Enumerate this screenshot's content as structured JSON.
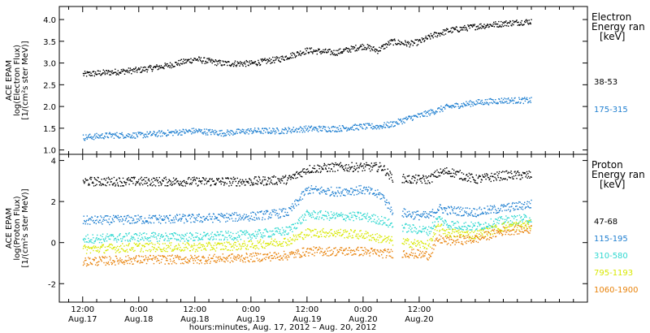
{
  "chart_data": [
    {
      "type": "scatter",
      "ylabel": "ACE EPAM\nlog(Electron Flux)\n[1/(cm²s ster MeV)]",
      "ylim": [
        0.9,
        4.3
      ],
      "yticks": [
        1.0,
        1.5,
        2.0,
        2.5,
        3.0,
        3.5,
        4.0
      ],
      "ytick_labels": [
        "1.0",
        "1.5",
        "2.0",
        "2.5",
        "3.0",
        "3.5",
        "4.0"
      ],
      "legend_title": "Electron\nEnergy ran\n[keV]",
      "legend_placement": "right",
      "series": [
        {
          "name": "38-53",
          "color": "#000000",
          "x": [
            0,
            6,
            12,
            18,
            24,
            30,
            36,
            42,
            48,
            54,
            60,
            63,
            66,
            70,
            72,
            75,
            78,
            84,
            90,
            96
          ],
          "y": [
            2.75,
            2.8,
            2.85,
            2.95,
            3.1,
            3.0,
            3.0,
            3.1,
            3.3,
            3.25,
            3.4,
            3.3,
            3.5,
            3.45,
            3.5,
            3.65,
            3.75,
            3.85,
            3.92,
            3.97
          ]
        },
        {
          "name": "175-315",
          "color": "#1f7fd0",
          "x": [
            0,
            6,
            12,
            18,
            24,
            30,
            36,
            42,
            48,
            54,
            60,
            63,
            66,
            70,
            72,
            75,
            78,
            84,
            90,
            96
          ],
          "y": [
            1.3,
            1.35,
            1.35,
            1.4,
            1.45,
            1.4,
            1.45,
            1.45,
            1.5,
            1.5,
            1.55,
            1.55,
            1.6,
            1.75,
            1.8,
            1.9,
            2.0,
            2.1,
            2.15,
            2.15
          ]
        }
      ]
    },
    {
      "type": "scatter",
      "ylabel": "ACE EPAM\nlog(Proton Flux)\n[1/(cm²s ster MeV)]",
      "ylim": [
        -2.9,
        4.3
      ],
      "yticks": [
        -2,
        0,
        2,
        4
      ],
      "ytick_labels": [
        "-2",
        "0",
        "2",
        "4"
      ],
      "legend_title": "Proton\nEnergy ran\n[keV]",
      "legend_placement": "right",
      "series": [
        {
          "name": "47-68",
          "color": "#000000",
          "x": [
            0,
            12,
            24,
            36,
            44,
            48,
            54,
            60,
            64,
            66,
            70,
            74,
            76,
            78,
            84,
            90,
            96
          ],
          "y": [
            3.0,
            3.0,
            3.0,
            3.0,
            3.1,
            3.6,
            3.7,
            3.7,
            3.7,
            3.2,
            3.1,
            3.1,
            3.4,
            3.5,
            3.1,
            3.3,
            3.3
          ]
        },
        {
          "name": "115-195",
          "color": "#1f7fd0",
          "x": [
            0,
            12,
            24,
            36,
            44,
            48,
            54,
            60,
            64,
            66,
            70,
            74,
            76,
            78,
            84,
            90,
            96
          ],
          "y": [
            1.1,
            1.15,
            1.2,
            1.3,
            1.5,
            2.6,
            2.5,
            2.6,
            2.3,
            1.6,
            1.4,
            1.3,
            1.7,
            1.6,
            1.5,
            1.7,
            1.9
          ]
        },
        {
          "name": "310-580",
          "color": "#2fd8d0",
          "x": [
            0,
            12,
            24,
            36,
            44,
            48,
            54,
            60,
            64,
            66,
            70,
            74,
            76,
            78,
            84,
            90,
            96
          ],
          "y": [
            0.2,
            0.3,
            0.3,
            0.4,
            0.6,
            1.4,
            1.3,
            1.3,
            1.1,
            0.9,
            0.7,
            0.6,
            1.2,
            0.9,
            0.8,
            1.1,
            1.2
          ]
        },
        {
          "name": "795-1193",
          "color": "#d8e800",
          "x": [
            0,
            12,
            24,
            36,
            44,
            48,
            54,
            60,
            64,
            66,
            70,
            74,
            76,
            78,
            84,
            90,
            96
          ],
          "y": [
            -0.3,
            -0.2,
            -0.2,
            -0.1,
            0.1,
            0.5,
            0.5,
            0.4,
            0.2,
            0.1,
            0.0,
            -0.1,
            0.8,
            0.5,
            0.4,
            0.8,
            0.9
          ]
        },
        {
          "name": "1060-1900",
          "color": "#e8820a",
          "x": [
            0,
            12,
            24,
            36,
            44,
            48,
            54,
            60,
            64,
            66,
            70,
            74,
            76,
            78,
            84,
            90,
            96
          ],
          "y": [
            -0.9,
            -0.8,
            -0.8,
            -0.7,
            -0.6,
            -0.4,
            -0.4,
            -0.4,
            -0.5,
            -0.5,
            -0.5,
            -0.6,
            0.2,
            0.1,
            0.2,
            0.6,
            0.7
          ]
        }
      ]
    }
  ],
  "x_axis": {
    "xlabel": "hours:minutes, Aug. 17, 2012 – Aug. 20, 2012",
    "xlim": [
      -5,
      108
    ],
    "ticks": [
      {
        "hour": 0,
        "time": "12:00",
        "date": "Aug.17"
      },
      {
        "hour": 12,
        "time": "0:00",
        "date": "Aug.18"
      },
      {
        "hour": 24,
        "time": "12:00",
        "date": "Aug.18"
      },
      {
        "hour": 36,
        "time": "0:00",
        "date": "Aug.19"
      },
      {
        "hour": 48,
        "time": "12:00",
        "date": "Aug.19"
      },
      {
        "hour": 60,
        "time": "0:00",
        "date": "Aug.20"
      },
      {
        "hour": 72,
        "time": "12:00",
        "date": "Aug.20"
      }
    ],
    "minor_step_hours": 3
  }
}
